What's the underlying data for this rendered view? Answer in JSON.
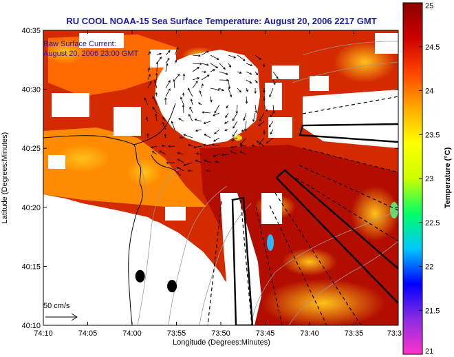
{
  "chart_data": {
    "type": "heatmap",
    "title": "RU COOL  NOAA-15  Sea Surface Temperature:  August 20, 2006 2217 GMT",
    "overlay_note_line1": "Raw Surface Current:",
    "overlay_note_line2": "August 20, 2006 23:00 GMT",
    "xlabel": "Longitude (Degrees:Minutes)",
    "ylabel": "Latitude (Degrees:Minutes)",
    "x_ticks": [
      "74:10",
      "74:05",
      "74:00",
      "73:55",
      "73:50",
      "73:45",
      "73:40",
      "73:35",
      "73:3"
    ],
    "y_ticks": [
      "40:35",
      "40:30",
      "40:25",
      "40:20",
      "40:15",
      "40:10"
    ],
    "x_range_deg": [
      -74.1667,
      -73.5
    ],
    "y_range_deg": [
      40.1667,
      40.5833
    ],
    "colorbar": {
      "label": "Temperature (°C)",
      "ticks": [
        "25",
        "24.5",
        "24",
        "23.5",
        "23",
        "22.5",
        "22",
        "21.5",
        "21"
      ],
      "range": [
        21,
        25
      ],
      "colors": [
        "#ff33cc",
        "#8a2be2",
        "#0000ff",
        "#00c8ff",
        "#00ff66",
        "#ccff00",
        "#ffff00",
        "#ffaa00",
        "#ff4400",
        "#cc0000",
        "#8b0000"
      ]
    },
    "scale_bar_label": "50 cm/s",
    "grid": false,
    "legend": "none",
    "stations": [
      {
        "name": "",
        "lon": -73.985,
        "lat": 40.236
      },
      {
        "name": "",
        "lon": -73.925,
        "lat": 40.222
      }
    ],
    "current_vectors_present": true
  }
}
